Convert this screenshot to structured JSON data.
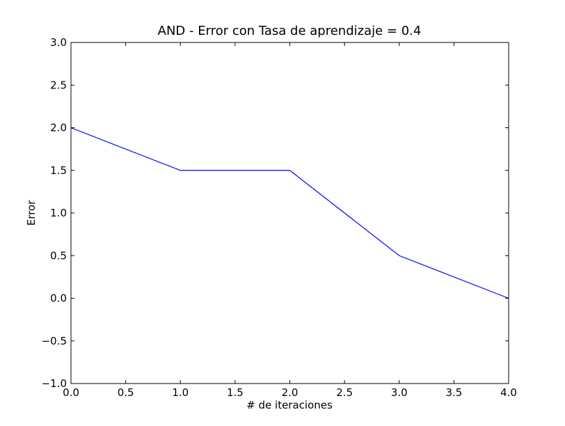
{
  "chart_data": {
    "type": "line",
    "title": "AND - Error con Tasa de aprendizaje = 0.4",
    "xlabel": "# de iteraciones",
    "ylabel": "Error",
    "xlim": [
      0.0,
      4.0
    ],
    "ylim": [
      -1.0,
      3.0
    ],
    "x_ticks": [
      0.0,
      0.5,
      1.0,
      1.5,
      2.0,
      2.5,
      3.0,
      3.5,
      4.0
    ],
    "x_tick_labels": [
      "0.0",
      "0.5",
      "1.0",
      "1.5",
      "2.0",
      "2.5",
      "3.0",
      "3.5",
      "4.0"
    ],
    "y_ticks": [
      -1.0,
      -0.5,
      0.0,
      0.5,
      1.0,
      1.5,
      2.0,
      2.5,
      3.0
    ],
    "y_tick_labels": [
      "−1.0",
      "−0.5",
      "0.0",
      "0.5",
      "1.0",
      "1.5",
      "2.0",
      "2.5",
      "3.0"
    ],
    "grid": false,
    "series": [
      {
        "color": "#0000ff",
        "x": [
          0,
          1,
          2,
          3,
          4
        ],
        "y": [
          2.0,
          1.5,
          1.5,
          0.5,
          0.0
        ]
      }
    ]
  }
}
